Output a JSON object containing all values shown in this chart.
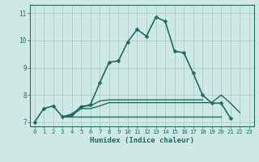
{
  "xlabel": "Humidex (Indice chaleur)",
  "bg_color": "#cde8e5",
  "grid_color": "#a8ceca",
  "line_color": "#1e6b62",
  "x_values": [
    0,
    1,
    2,
    3,
    4,
    5,
    6,
    7,
    8,
    9,
    10,
    11,
    12,
    13,
    14,
    15,
    16,
    17,
    18,
    19,
    20,
    21,
    22,
    23
  ],
  "series1": [
    7.0,
    7.5,
    7.6,
    7.2,
    7.3,
    7.55,
    7.65,
    8.45,
    9.2,
    9.25,
    9.95,
    10.4,
    10.15,
    10.85,
    10.7,
    9.6,
    9.55,
    8.8,
    8.0,
    7.7,
    7.7,
    7.15,
    null,
    null
  ],
  "series2": [
    null,
    null,
    null,
    7.22,
    7.22,
    7.6,
    7.6,
    7.78,
    7.82,
    7.82,
    7.82,
    7.82,
    7.82,
    7.82,
    7.82,
    7.82,
    7.82,
    7.82,
    7.82,
    null,
    null,
    null,
    null,
    null
  ],
  "series3": [
    null,
    null,
    null,
    7.2,
    7.25,
    7.5,
    7.5,
    7.6,
    7.72,
    7.72,
    7.72,
    7.72,
    7.72,
    7.72,
    7.72,
    7.72,
    7.72,
    7.72,
    7.72,
    7.72,
    8.0,
    7.7,
    7.35,
    null
  ],
  "series4": [
    null,
    null,
    null,
    7.2,
    7.2,
    7.2,
    7.2,
    7.2,
    7.2,
    7.2,
    7.2,
    7.2,
    7.2,
    7.2,
    7.2,
    7.2,
    7.2,
    7.2,
    7.2,
    7.2,
    7.2,
    null,
    null,
    7.15
  ],
  "xlim": [
    -0.5,
    23.5
  ],
  "ylim": [
    6.85,
    11.3
  ],
  "yticks": [
    7,
    8,
    9,
    10,
    11
  ],
  "xticks": [
    0,
    1,
    2,
    3,
    4,
    5,
    6,
    7,
    8,
    9,
    10,
    11,
    12,
    13,
    14,
    15,
    16,
    17,
    18,
    19,
    20,
    21,
    22,
    23
  ]
}
